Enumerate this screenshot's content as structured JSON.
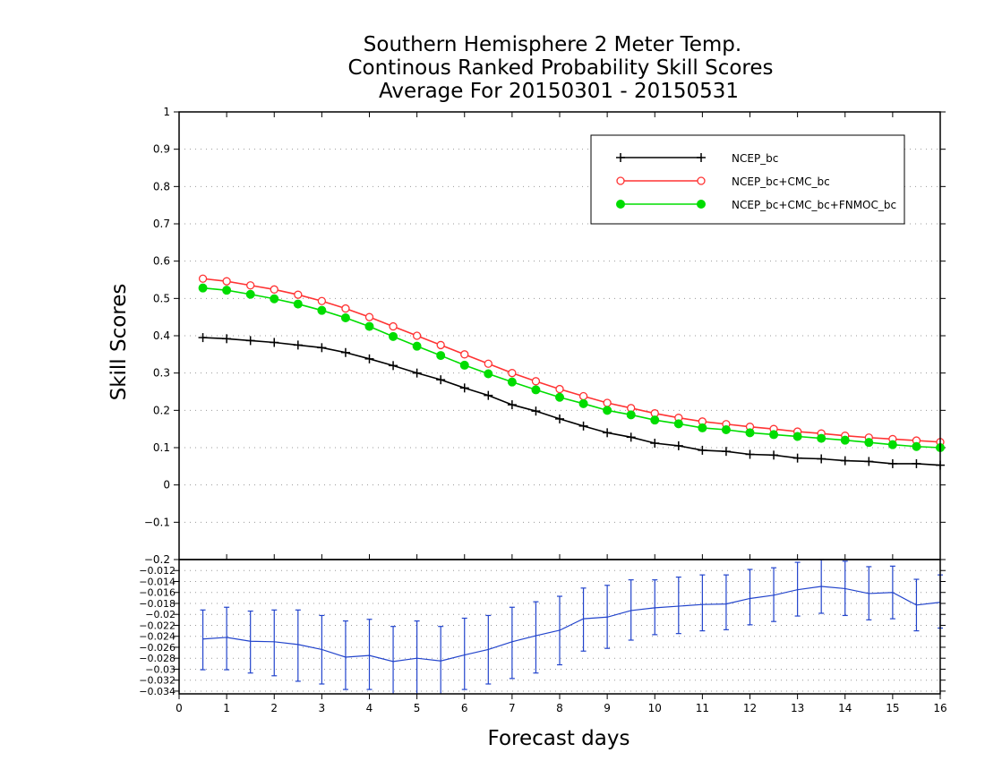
{
  "chart_data": {
    "type": "line",
    "title": [
      "Southern Hemisphere 2 Meter Temp.",
      "Continous Ranked Probability Skill Scores",
      "Average For 20150301 - 20150531"
    ],
    "xlabel": "Forecast days",
    "ylabel": "Skill Scores",
    "xlim": [
      0,
      16
    ],
    "xticks": [
      "0",
      "1",
      "2",
      "3",
      "4",
      "5",
      "6",
      "7",
      "8",
      "9",
      "10",
      "11",
      "12",
      "13",
      "14",
      "15",
      "16"
    ],
    "top_panel": {
      "ylim": [
        -0.2,
        1
      ],
      "yticks": [
        "-0.2",
        "-0.1",
        "0",
        "0.1",
        "0.2",
        "0.3",
        "0.4",
        "0.5",
        "0.6",
        "0.7",
        "0.8",
        "0.9",
        "1"
      ],
      "grid": true,
      "legend_position": "top-right",
      "x": [
        0.5,
        1,
        1.5,
        2,
        2.5,
        3,
        3.5,
        4,
        4.5,
        5,
        5.5,
        6,
        6.5,
        7,
        7.5,
        8,
        8.5,
        9,
        9.5,
        10,
        10.5,
        11,
        11.5,
        12,
        12.5,
        13,
        13.5,
        14,
        14.5,
        15,
        15.5,
        16
      ],
      "series": [
        {
          "name": "NCEP_bc",
          "color": "#000000",
          "marker": "plus",
          "values": [
            0.395,
            0.392,
            0.387,
            0.382,
            0.375,
            0.368,
            0.355,
            0.338,
            0.32,
            0.3,
            0.282,
            0.26,
            0.24,
            0.215,
            0.198,
            0.177,
            0.158,
            0.14,
            0.128,
            0.112,
            0.105,
            0.093,
            0.09,
            0.082,
            0.08,
            0.072,
            0.07,
            0.065,
            0.063,
            0.057,
            0.057,
            0.053
          ]
        },
        {
          "name": "NCEP_bc+CMC_bc",
          "color": "#ff3333",
          "marker": "open-circle",
          "values": [
            0.553,
            0.546,
            0.535,
            0.524,
            0.51,
            0.493,
            0.473,
            0.45,
            0.425,
            0.4,
            0.375,
            0.35,
            0.325,
            0.3,
            0.278,
            0.257,
            0.238,
            0.22,
            0.206,
            0.192,
            0.18,
            0.17,
            0.163,
            0.156,
            0.15,
            0.143,
            0.138,
            0.132,
            0.127,
            0.123,
            0.119,
            0.115
          ]
        },
        {
          "name": "NCEP_bc+CMC_bc+FNMOC_bc",
          "color": "#00dd00",
          "marker": "filled-circle",
          "values": [
            0.528,
            0.522,
            0.511,
            0.499,
            0.485,
            0.468,
            0.448,
            0.425,
            0.398,
            0.372,
            0.347,
            0.321,
            0.298,
            0.276,
            0.255,
            0.235,
            0.218,
            0.2,
            0.188,
            0.174,
            0.164,
            0.153,
            0.148,
            0.14,
            0.135,
            0.13,
            0.125,
            0.12,
            0.114,
            0.108,
            0.103,
            0.1
          ]
        }
      ]
    },
    "bottom_panel": {
      "ylim": [
        -0.0345,
        -0.01
      ],
      "yticks": [
        "-0.012",
        "-0.014",
        "-0.016",
        "-0.018",
        "-0.02",
        "-0.022",
        "-0.024",
        "-0.026",
        "-0.028",
        "-0.03",
        "-0.032",
        "-0.034"
      ],
      "grid": true,
      "series": [
        {
          "name": "",
          "color": "#2244cc",
          "x": [
            0.5,
            1,
            1.5,
            2,
            2.5,
            3,
            3.5,
            4,
            4.5,
            5,
            5.5,
            6,
            6.5,
            7,
            7.5,
            8,
            8.5,
            9,
            9.5,
            10,
            10.5,
            11,
            11.5,
            12,
            12.5,
            13,
            13.5,
            14,
            14.5,
            15,
            15.5,
            16
          ],
          "values": [
            -0.0245,
            -0.0242,
            -0.0249,
            -0.025,
            -0.0255,
            -0.0264,
            -0.0278,
            -0.0275,
            -0.0286,
            -0.028,
            -0.0285,
            -0.0274,
            -0.0264,
            -0.025,
            -0.0239,
            -0.0229,
            -0.0208,
            -0.0205,
            -0.0193,
            -0.0188,
            -0.0185,
            -0.0182,
            -0.0181,
            -0.0171,
            -0.0165,
            -0.0155,
            -0.0149,
            -0.0153,
            -0.0162,
            -0.016,
            -0.0183,
            -0.0178
          ],
          "err_low": [
            -0.0301,
            -0.0301,
            -0.0307,
            -0.0312,
            -0.0322,
            -0.0327,
            -0.0337,
            -0.0337,
            -0.0347,
            -0.0347,
            -0.0347,
            -0.0337,
            -0.0327,
            -0.0317,
            -0.0307,
            -0.0292,
            -0.0267,
            -0.0262,
            -0.0247,
            -0.0237,
            -0.0235,
            -0.023,
            -0.0228,
            -0.0219,
            -0.0213,
            -0.0203,
            -0.0198,
            -0.0202,
            -0.021,
            -0.0208,
            -0.023,
            -0.0225
          ],
          "err_high": [
            -0.0192,
            -0.0187,
            -0.0194,
            -0.0192,
            -0.0192,
            -0.0202,
            -0.0212,
            -0.0209,
            -0.0222,
            -0.0212,
            -0.0222,
            -0.0207,
            -0.0202,
            -0.0187,
            -0.0177,
            -0.0167,
            -0.0152,
            -0.0147,
            -0.0137,
            -0.0137,
            -0.0132,
            -0.0128,
            -0.0128,
            -0.0118,
            -0.0115,
            -0.0105,
            -0.01,
            -0.0103,
            -0.0113,
            -0.0112,
            -0.0136,
            -0.0128
          ]
        }
      ]
    }
  }
}
